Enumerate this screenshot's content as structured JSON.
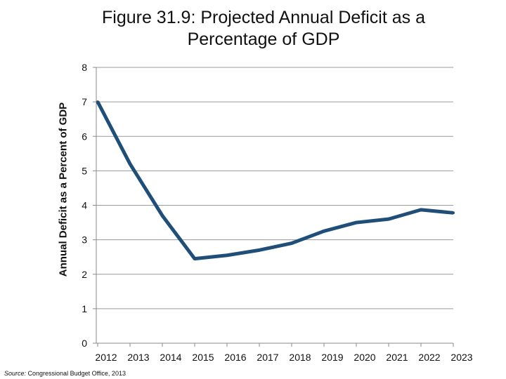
{
  "chart_data": {
    "type": "line",
    "title_lines": [
      "Figure 31.9: Projected Annual Deficit as a",
      "Percentage of GDP"
    ],
    "ylabel": "Annual Deficit as a Percent of GDP",
    "xlabel": "",
    "ylim": [
      0,
      8
    ],
    "yticks": [
      "0",
      "1",
      "2",
      "3",
      "4",
      "5",
      "6",
      "7",
      "8"
    ],
    "categories": [
      "2012",
      "2013",
      "2014",
      "2015",
      "2016",
      "2017",
      "2018",
      "2019",
      "2020",
      "2021",
      "2022",
      "2023"
    ],
    "series": [
      {
        "name": "Projected Annual Deficit",
        "values": [
          7.0,
          5.2,
          3.7,
          2.45,
          2.55,
          2.7,
          2.9,
          3.25,
          3.5,
          3.6,
          3.87,
          3.78
        ]
      }
    ],
    "grid": true,
    "legend": "none"
  },
  "source": {
    "label": "Source:",
    "text": " Congressional Budget Office, 2013"
  },
  "colors": {
    "line": "#1f4e79",
    "grid": "#9a9a9a",
    "axis": "#888888",
    "text": "#111111"
  }
}
